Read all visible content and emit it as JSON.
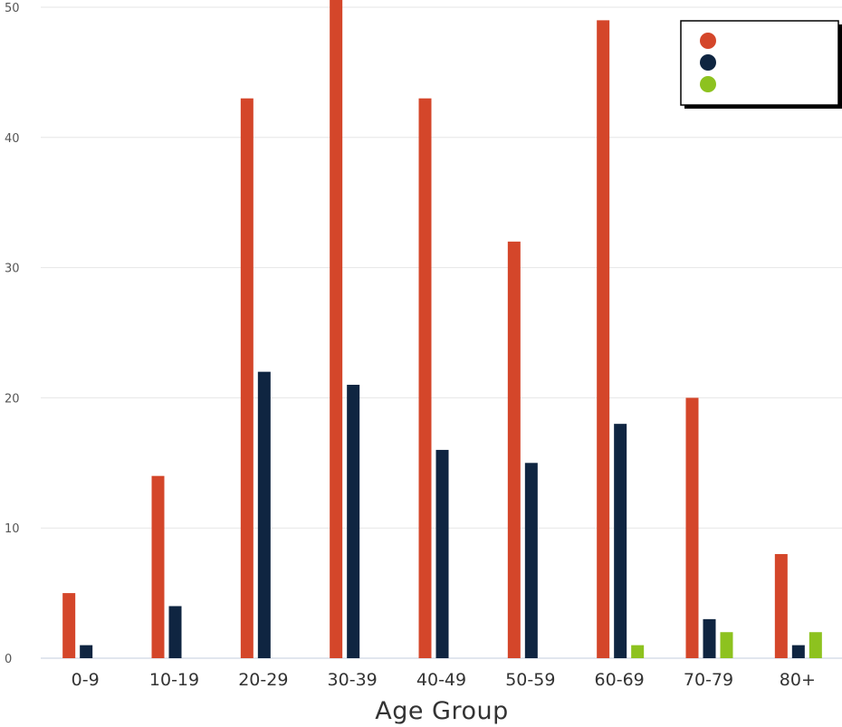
{
  "chart_data": {
    "type": "bar",
    "xlabel": "Age Group",
    "ylabel": "",
    "ylim": [
      0,
      50
    ],
    "yticks": [
      0,
      10,
      20,
      30,
      40,
      50
    ],
    "categories": [
      "0-9",
      "10-19",
      "20-29",
      "30-39",
      "40-49",
      "50-59",
      "60-69",
      "70-79",
      "80+"
    ],
    "series": [
      {
        "color": "#d4462a",
        "values": [
          5,
          14,
          43,
          51,
          43,
          32,
          49,
          20,
          8
        ]
      },
      {
        "color": "#0f2541",
        "values": [
          1,
          4,
          22,
          21,
          16,
          15,
          18,
          3,
          1
        ]
      },
      {
        "color": "#8dc21f",
        "values": [
          0,
          0,
          0,
          0,
          0,
          0,
          1,
          2,
          2
        ]
      }
    ],
    "grid": true,
    "legend_position": "top-right"
  }
}
